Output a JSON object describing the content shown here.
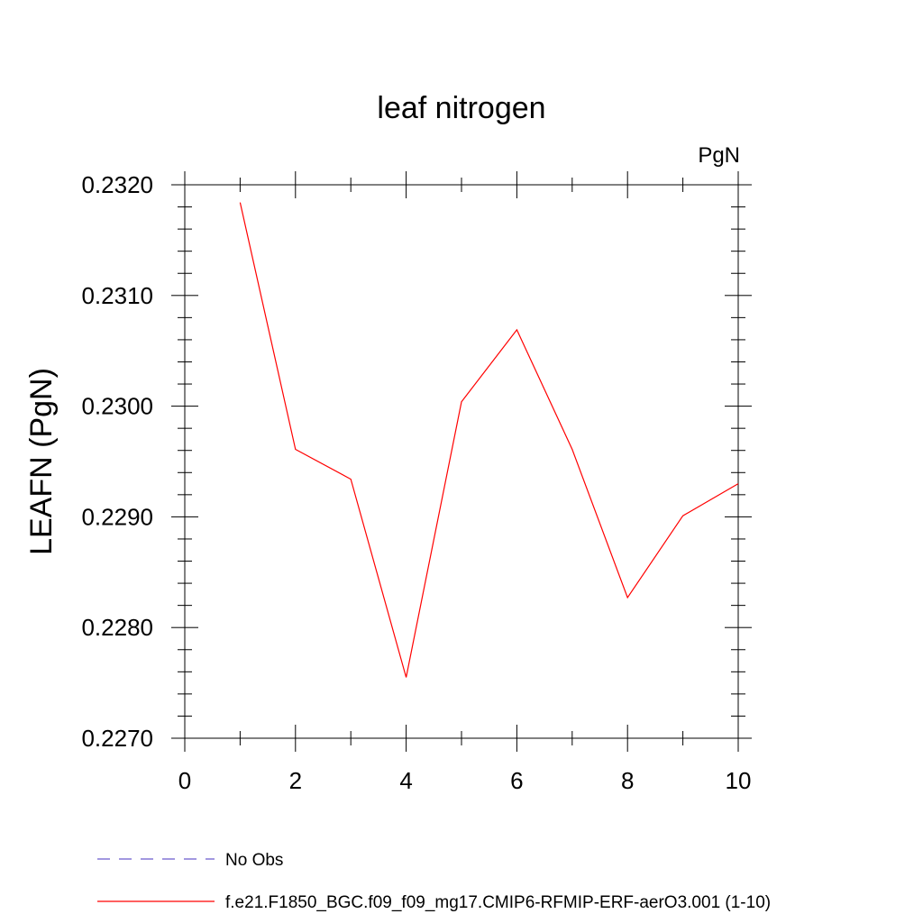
{
  "chart_data": {
    "type": "line",
    "title": "leaf nitrogen",
    "units_label": "PgN",
    "ylabel": "LEAFN  (PgN)",
    "xlabel": "",
    "xlim": [
      0,
      10
    ],
    "ylim": [
      0.227,
      0.232
    ],
    "x_ticks": [
      0,
      2,
      4,
      6,
      8,
      10
    ],
    "x_tick_labels": [
      "0",
      "2",
      "4",
      "6",
      "8",
      "10"
    ],
    "y_ticks": [
      0.227,
      0.228,
      0.229,
      0.23,
      0.231,
      0.232
    ],
    "y_tick_labels": [
      "0.2270",
      "0.2280",
      "0.2290",
      "0.2300",
      "0.2310",
      "0.2320"
    ],
    "grid": false,
    "legend_position": "bottom-left",
    "series": [
      {
        "name": "No Obs",
        "color": "#6a5acd",
        "style": "dashed",
        "x": [],
        "values": []
      },
      {
        "name": "f.e21.F1850_BGC.f09_f09_mg17.CMIP6-RFMIP-ERF-aerO3.001 (1-10)",
        "color": "#ff0000",
        "style": "solid",
        "x": [
          1,
          2,
          3,
          4,
          5,
          6,
          7,
          8,
          9,
          10
        ],
        "values": [
          0.23184,
          0.22961,
          0.22934,
          0.22755,
          0.23004,
          0.23069,
          0.22961,
          0.22827,
          0.22901,
          0.2293
        ]
      }
    ]
  }
}
